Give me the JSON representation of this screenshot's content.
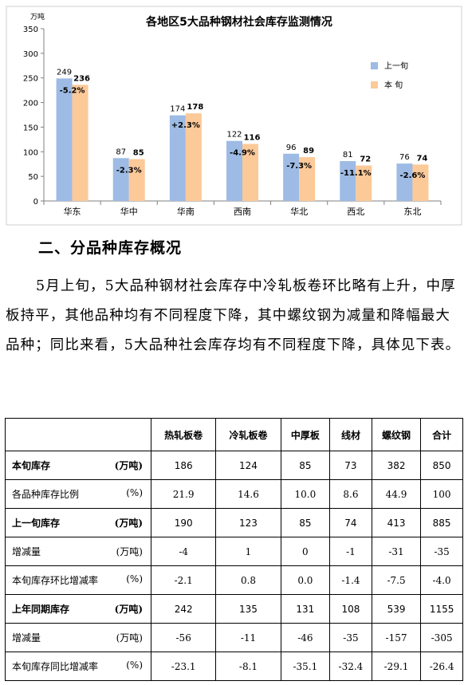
{
  "chart_data": {
    "type": "bar",
    "title": "各地区5大品种钢材社会库存监测情况",
    "ylabel": "万吨",
    "ylim": [
      0,
      350
    ],
    "yticks": [
      "0",
      "50",
      "100",
      "150",
      "200",
      "250",
      "300",
      "350"
    ],
    "categories": [
      "华东",
      "华中",
      "华南",
      "西南",
      "华北",
      "西北",
      "东北"
    ],
    "series": [
      {
        "name": "上一旬",
        "values": [
          249,
          87,
          174,
          122,
          96,
          81,
          76
        ],
        "color": "#9dbbe4"
      },
      {
        "name": "本 旬",
        "values": [
          236,
          85,
          178,
          116,
          89,
          72,
          74
        ],
        "color": "#fcc999"
      }
    ],
    "change_labels": [
      "-5.2%",
      "-2.3%",
      "+2.3%",
      "-4.9%",
      "-7.3%",
      "-11.1%",
      "-2.6%"
    ],
    "legend_position": "right"
  },
  "section": {
    "title": "二、分品种库存概况",
    "paragraph": "5月上旬，5大品种钢材社会库存中冷轧板卷环比略有上升，中厚板持平，其他品种均有不同程度下降，其中螺纹钢为减量和降幅最大品种；同比来看，5大品种社会库存均有不同程度下降，具体见下表。"
  },
  "table": {
    "headers": [
      "",
      "热轧板卷",
      "冷轧板卷",
      "中厚板",
      "线材",
      "螺纹钢",
      "合计"
    ],
    "rows": [
      {
        "label": "本旬库存",
        "unit": "(万吨)",
        "bold": true,
        "values": [
          "186",
          "124",
          "85",
          "73",
          "382",
          "850"
        ]
      },
      {
        "label": "各品种库存比例",
        "unit": "(%)",
        "bold": false,
        "values": [
          "21.9",
          "14.6",
          "10.0",
          "8.6",
          "44.9",
          "100"
        ]
      },
      {
        "label": "上一旬库存",
        "unit": "(万吨)",
        "bold": true,
        "values": [
          "190",
          "123",
          "85",
          "74",
          "413",
          "885"
        ]
      },
      {
        "label": "增减量",
        "unit": "(万吨)",
        "bold": false,
        "values": [
          "-4",
          "1",
          "0",
          "-1",
          "-31",
          "-35"
        ]
      },
      {
        "label": "本旬库存环比增减率",
        "unit": "(%)",
        "bold": false,
        "values": [
          "-2.1",
          "0.8",
          "0.0",
          "-1.4",
          "-7.5",
          "-4.0"
        ]
      },
      {
        "label": "上年同期库存",
        "unit": "(万吨)",
        "bold": true,
        "values": [
          "242",
          "135",
          "131",
          "108",
          "539",
          "1155"
        ]
      },
      {
        "label": "增减量",
        "unit": "(万吨)",
        "bold": false,
        "values": [
          "-56",
          "-11",
          "-46",
          "-35",
          "-157",
          "-305"
        ]
      },
      {
        "label": "本旬库存同比增减率",
        "unit": "(%)",
        "bold": false,
        "values": [
          "-23.1",
          "-8.1",
          "-35.1",
          "-32.4",
          "-29.1",
          "-26.4"
        ]
      }
    ]
  }
}
